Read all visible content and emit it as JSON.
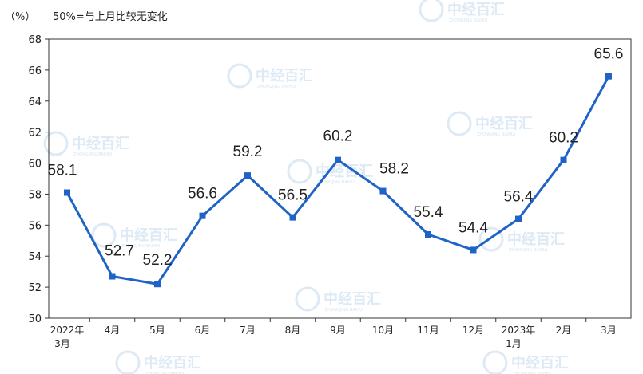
{
  "header": {
    "unit": "（%）",
    "note": "50%=与上月比较无变化"
  },
  "watermark": {
    "text": "中经百汇",
    "sub": "ZHONGJING BAIHUI"
  },
  "colors": {
    "line": "#1f63c6",
    "axis": "#333333"
  },
  "chart_data": {
    "type": "line",
    "categories": [
      [
        "2022年",
        "3月"
      ],
      [
        "4月"
      ],
      [
        "5月"
      ],
      [
        "6月"
      ],
      [
        "7月"
      ],
      [
        "8月"
      ],
      [
        "9月"
      ],
      [
        "10月"
      ],
      [
        "11月"
      ],
      [
        "12月"
      ],
      [
        "2023年",
        "1月"
      ],
      [
        "2月"
      ],
      [
        "3月"
      ]
    ],
    "series": [
      {
        "values": [
          58.1,
          52.7,
          52.2,
          56.6,
          59.2,
          56.5,
          60.2,
          58.2,
          55.4,
          54.4,
          56.4,
          60.2,
          65.6
        ],
        "labels": [
          "58.1",
          "52.7",
          "52.2",
          "56.6",
          "59.2",
          "56.5",
          "60.2",
          "58.2",
          "55.4",
          "54.4",
          "56.4",
          "60.2",
          "65.6"
        ]
      }
    ],
    "ylim": [
      50,
      68
    ],
    "yticks": [
      "50",
      "52",
      "54",
      "56",
      "58",
      "60",
      "62",
      "64",
      "66",
      "68"
    ],
    "grid": false,
    "marker": "square"
  }
}
